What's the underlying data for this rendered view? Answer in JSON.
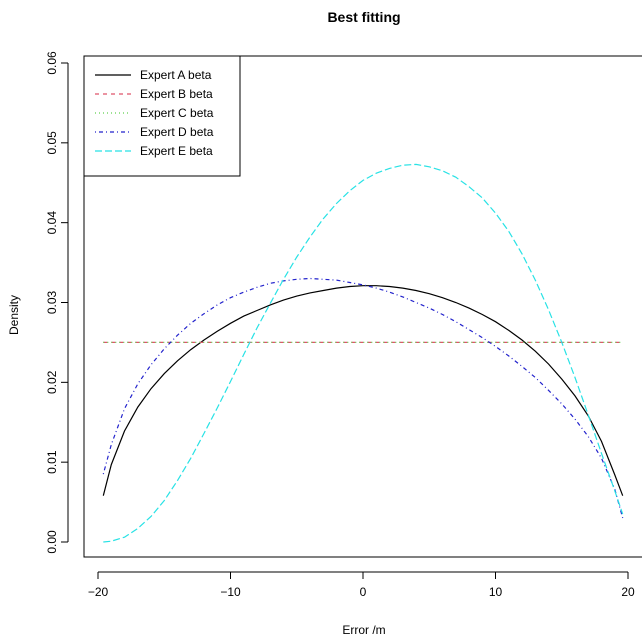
{
  "chart_data": {
    "type": "line",
    "title": "Best fitting",
    "xlabel": "Error /m",
    "ylabel": "Density",
    "xlim": [
      -20,
      20
    ],
    "ylim": [
      0,
      0.06
    ],
    "x_ticks": [
      -20,
      -10,
      0,
      10,
      20
    ],
    "x_tick_labels": [
      "−20",
      "−10",
      "0",
      "10",
      "20"
    ],
    "y_ticks": [
      0,
      0.01,
      0.02,
      0.03,
      0.04,
      0.05,
      0.06
    ],
    "y_tick_labels": [
      "0.00",
      "0.01",
      "0.02",
      "0.03",
      "0.04",
      "0.05",
      "0.06"
    ],
    "grid": false,
    "legend_position": "top-left",
    "series": [
      {
        "name": "Expert A beta",
        "color": "#000000",
        "line_style": "solid",
        "x": [
          -19.6,
          -19,
          -18,
          -17,
          -16,
          -15,
          -14,
          -13,
          -12,
          -11,
          -10,
          -9,
          -8,
          -7,
          -6,
          -5,
          -4,
          -3,
          -2,
          -1,
          0,
          1,
          2,
          3,
          4,
          5,
          6,
          7,
          8,
          9,
          10,
          11,
          12,
          13,
          14,
          15,
          16,
          17,
          18,
          19,
          19.6
        ],
        "y": [
          0.0058,
          0.0097,
          0.0139,
          0.0169,
          0.0192,
          0.0211,
          0.0227,
          0.0241,
          0.0253,
          0.0264,
          0.0274,
          0.0283,
          0.029,
          0.0297,
          0.0303,
          0.0308,
          0.0312,
          0.0315,
          0.0318,
          0.032,
          0.0321,
          0.0321,
          0.032,
          0.0318,
          0.0315,
          0.0311,
          0.0306,
          0.03,
          0.0293,
          0.0285,
          0.0276,
          0.0265,
          0.0253,
          0.0239,
          0.0223,
          0.0204,
          0.0183,
          0.0158,
          0.0126,
          0.0084,
          0.0058
        ]
      },
      {
        "name": "Expert B beta",
        "color": "#df536b",
        "line_style": "dashed",
        "x": [
          -19.6,
          19.6
        ],
        "y": [
          0.025,
          0.025
        ]
      },
      {
        "name": "Expert C beta",
        "color": "#61d04f",
        "line_style": "dotted",
        "x": [
          -19.6,
          19.6
        ],
        "y": [
          0.025,
          0.025
        ]
      },
      {
        "name": "Expert D beta",
        "color": "#2222cc",
        "line_style": "dotdash",
        "x": [
          -19.6,
          -19,
          -18,
          -17,
          -16,
          -15,
          -14,
          -13,
          -12,
          -11,
          -10,
          -9,
          -8,
          -7,
          -6,
          -5,
          -4,
          -3,
          -2,
          -1,
          0,
          1,
          2,
          3,
          4,
          5,
          6,
          7,
          8,
          9,
          10,
          11,
          12,
          13,
          14,
          15,
          16,
          17,
          18,
          19,
          19.6
        ],
        "y": [
          0.0085,
          0.0122,
          0.0167,
          0.0198,
          0.0222,
          0.0242,
          0.0259,
          0.0274,
          0.0286,
          0.0297,
          0.0306,
          0.0313,
          0.0319,
          0.0324,
          0.0327,
          0.0329,
          0.033,
          0.0329,
          0.0328,
          0.0325,
          0.0322,
          0.0318,
          0.0313,
          0.0307,
          0.03,
          0.0293,
          0.0285,
          0.0276,
          0.0266,
          0.0256,
          0.0245,
          0.0233,
          0.022,
          0.0206,
          0.019,
          0.0173,
          0.0154,
          0.0132,
          0.0105,
          0.0066,
          0.003
        ]
      },
      {
        "name": "Expert E beta",
        "color": "#28e2e5",
        "line_style": "longdash",
        "x": [
          -19.6,
          -19,
          -18,
          -17,
          -16,
          -15,
          -14,
          -13,
          -12,
          -11,
          -10,
          -9,
          -8,
          -7,
          -6,
          -5,
          -4,
          -3,
          -2,
          -1,
          0,
          1,
          2,
          3,
          4,
          5,
          6,
          7,
          8,
          9,
          10,
          11,
          12,
          13,
          14,
          15,
          16,
          17,
          18,
          19,
          19.6
        ],
        "y": [
          0.0,
          0.0001,
          0.0006,
          0.0017,
          0.0032,
          0.0052,
          0.0077,
          0.0105,
          0.0136,
          0.0168,
          0.0201,
          0.0235,
          0.0268,
          0.0299,
          0.0329,
          0.0357,
          0.0382,
          0.0405,
          0.0424,
          0.044,
          0.0453,
          0.0462,
          0.0468,
          0.0472,
          0.0473,
          0.047,
          0.0465,
          0.0457,
          0.0445,
          0.0431,
          0.0412,
          0.0389,
          0.0361,
          0.0328,
          0.0291,
          0.025,
          0.0206,
          0.0159,
          0.0111,
          0.0064,
          0.0035
        ]
      }
    ]
  }
}
